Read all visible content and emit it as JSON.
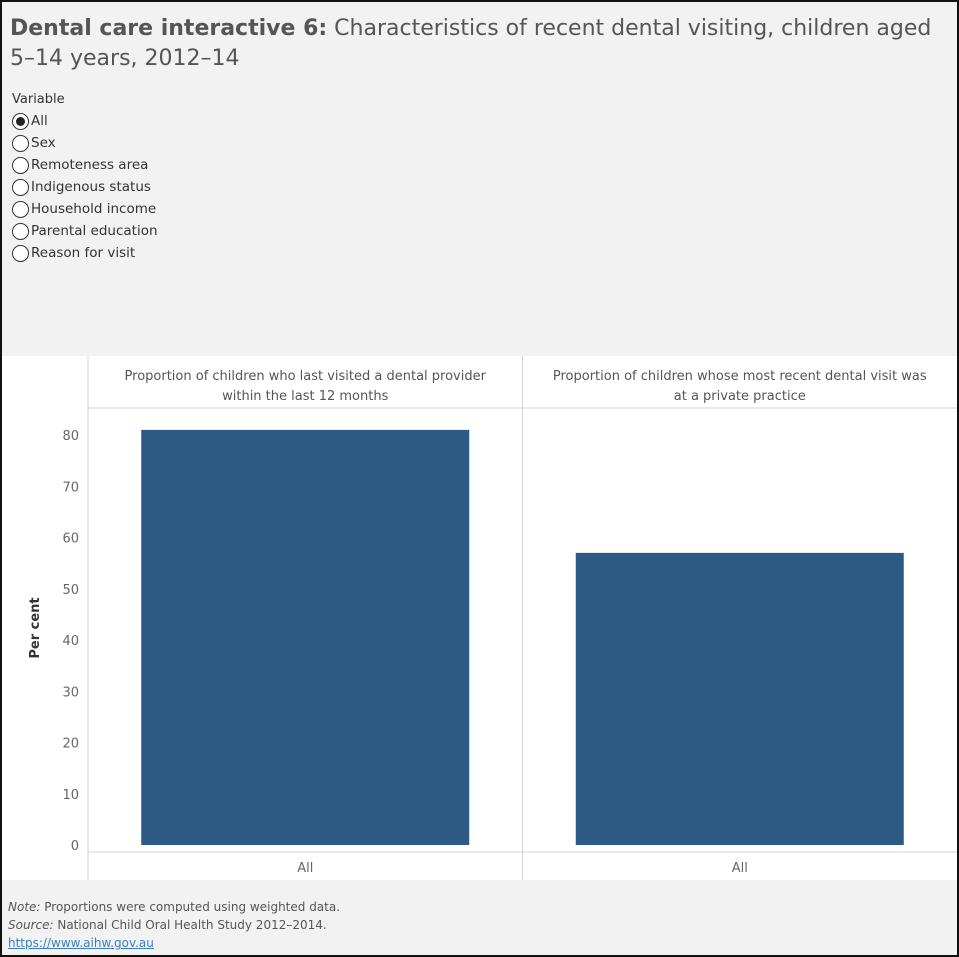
{
  "title": {
    "bold": "Dental care interactive 6:",
    "rest": " Characteristics of recent dental visiting, children aged 5–14 years, 2012–14"
  },
  "filter": {
    "label": "Variable",
    "options": [
      "All",
      "Sex",
      "Remoteness area",
      "Indigenous status",
      "Household income",
      "Parental education",
      "Reason for visit"
    ],
    "selected": "All"
  },
  "chart_data": {
    "type": "bar",
    "ylabel": "Per cent",
    "ylim": [
      0,
      85
    ],
    "yticks": [
      0,
      10,
      20,
      30,
      40,
      50,
      60,
      70,
      80
    ],
    "panels": [
      {
        "header_lines": [
          "Proportion of children who last visited a dental provider",
          "within the last 12 months"
        ],
        "categories": [
          "All"
        ],
        "values": [
          81
        ]
      },
      {
        "header_lines": [
          "Proportion of children whose most recent dental visit was",
          "at a private practice"
        ],
        "categories": [
          "All"
        ],
        "values": [
          57
        ]
      }
    ],
    "bar_color": "#2d5985"
  },
  "notes": {
    "note_label": "Note:",
    "note_text": " Proportions were computed using weighted data.",
    "source_label": "Source:",
    "source_text": " National Child Oral Health Study 2012–2014.",
    "link": "https://www.aihw.gov.au"
  }
}
